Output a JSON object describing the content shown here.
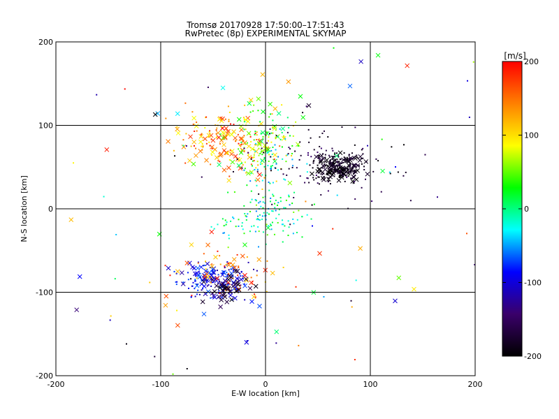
{
  "chart_data": {
    "type": "scatter",
    "title": "Tromsø 20170928 17:50:00–17:51:43",
    "subtitle": "RwPretec (8p) EXPERIMENTAL SKYMAP",
    "xlabel": "E-W location [km]",
    "ylabel": "N-S location [km]",
    "xlim": [
      -200,
      200
    ],
    "ylim": [
      -200,
      200
    ],
    "xticks": [
      -200,
      -100,
      0,
      100,
      200
    ],
    "yticks": [
      -200,
      -100,
      0,
      100,
      200
    ],
    "grid": true,
    "colorbar": {
      "label": "[m/s]",
      "range": [
        -200,
        200
      ],
      "ticks": [
        200,
        100,
        0,
        -100,
        -200
      ],
      "colors": [
        "#000000",
        "#3a006a",
        "#0000ff",
        "#00ffff",
        "#00ff00",
        "#ffff00",
        "#ff8000",
        "#ff0000"
      ]
    },
    "clusters": [
      {
        "center": [
          -40,
          85
        ],
        "spread": [
          22,
          18
        ],
        "count": 160,
        "value_range": [
          80,
          200
        ],
        "marker": "mixed"
      },
      {
        "center": [
          -5,
          80
        ],
        "spread": [
          18,
          25
        ],
        "count": 130,
        "value_range": [
          0,
          120
        ],
        "marker": "mixed"
      },
      {
        "center": [
          5,
          40
        ],
        "spread": [
          12,
          25
        ],
        "count": 60,
        "value_range": [
          -60,
          20
        ],
        "marker": "dot"
      },
      {
        "center": [
          70,
          50
        ],
        "spread": [
          12,
          8
        ],
        "count": 240,
        "value_range": [
          -200,
          -170
        ],
        "marker": "mixed"
      },
      {
        "center": [
          50,
          60
        ],
        "spread": [
          40,
          25
        ],
        "count": 110,
        "value_range": [
          -200,
          -140
        ],
        "marker": "dot"
      },
      {
        "center": [
          0,
          -10
        ],
        "spread": [
          22,
          15
        ],
        "count": 120,
        "value_range": [
          -60,
          60
        ],
        "marker": "dot"
      },
      {
        "center": [
          -50,
          -85
        ],
        "spread": [
          18,
          12
        ],
        "count": 170,
        "value_range": [
          -130,
          -60
        ],
        "marker": "mixed"
      },
      {
        "center": [
          -40,
          -75
        ],
        "spread": [
          25,
          15
        ],
        "count": 70,
        "value_range": [
          100,
          200
        ],
        "marker": "mixed"
      },
      {
        "center": [
          -30,
          -95
        ],
        "spread": [
          12,
          10
        ],
        "count": 40,
        "value_range": [
          -200,
          -150
        ],
        "marker": "cross"
      },
      {
        "center": [
          -10,
          0
        ],
        "spread": [
          120,
          120
        ],
        "count": 110,
        "value_range": [
          -200,
          200
        ],
        "marker": "mixed"
      }
    ]
  }
}
